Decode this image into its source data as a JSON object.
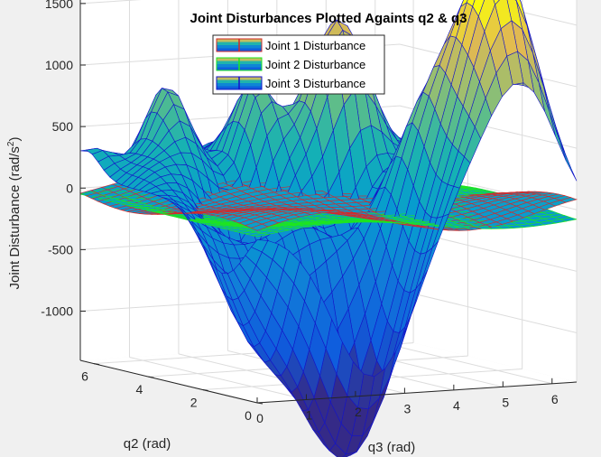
{
  "chart_data": {
    "type": "surface",
    "title": "Joint Disturbances Plotted Againts q2 & q3",
    "xlabel": "q3 (rad)",
    "ylabel": "q2 (rad)",
    "zlabel_main": "Joint Disturbance (rad/s",
    "zlabel_sup": "2",
    "zlabel_close": ")",
    "xlim": [
      0,
      6.5
    ],
    "ylim": [
      0,
      6.5
    ],
    "zlim": [
      -1400,
      1800
    ],
    "xticks": [
      "0",
      "1",
      "2",
      "3",
      "4",
      "5",
      "6"
    ],
    "yticks": [
      "0",
      "2",
      "4",
      "6"
    ],
    "zticks": [
      "-1000",
      "-500",
      "0",
      "500",
      "1000",
      "1500"
    ],
    "grid": true,
    "legend_position": "top-center",
    "series": [
      {
        "name": "Joint 1 Disturbance",
        "edge_color": "#d42a2a",
        "z_range": [
          -150,
          150
        ]
      },
      {
        "name": "Joint 2 Disturbance",
        "edge_color": "#1ee61e",
        "z_range": [
          -200,
          100
        ]
      },
      {
        "name": "Joint 3 Disturbance",
        "edge_color": "#1414c8",
        "z_range": [
          -1450,
          1700
        ]
      }
    ],
    "colormap": "parula"
  }
}
